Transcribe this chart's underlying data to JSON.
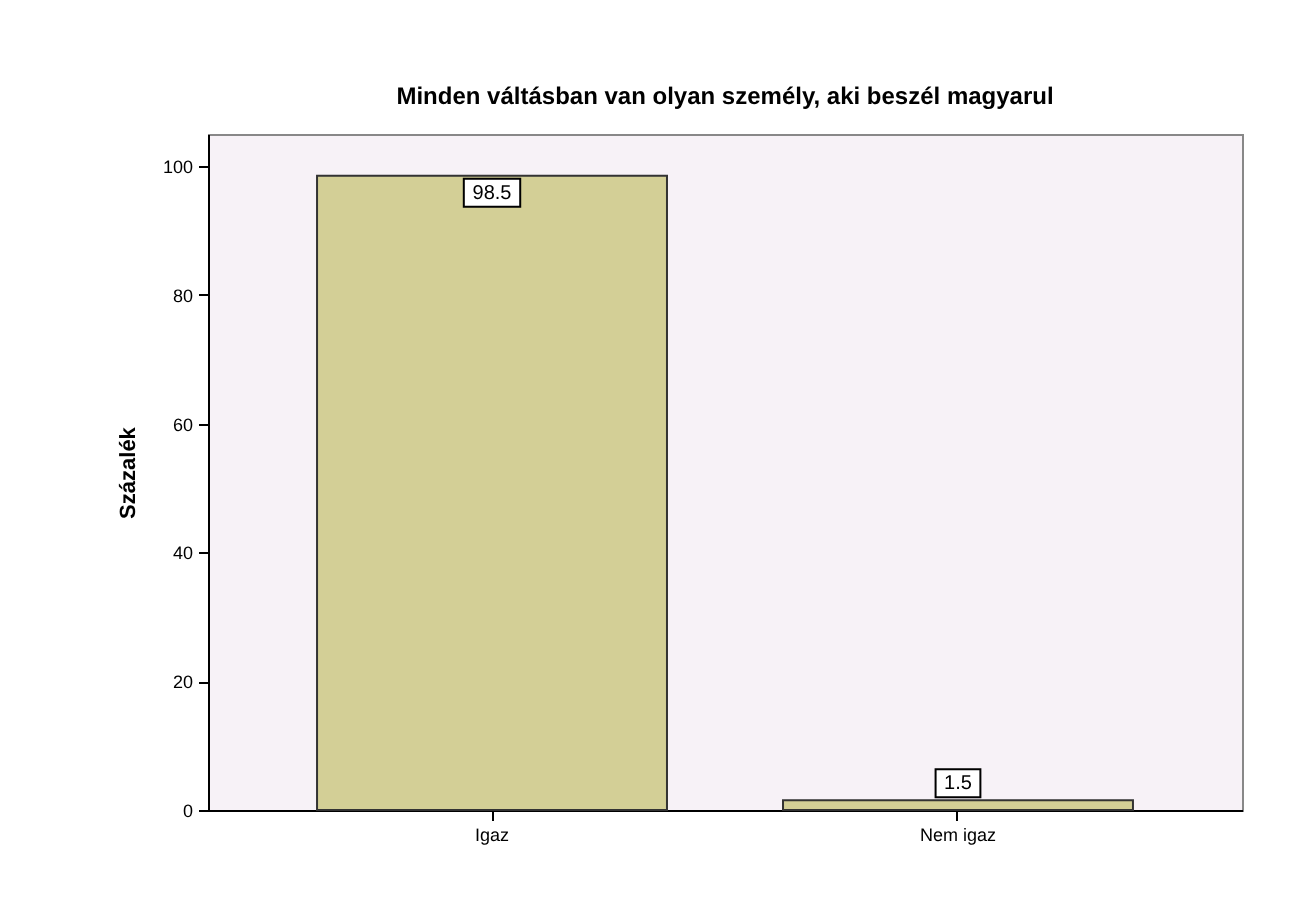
{
  "chart_data": {
    "type": "bar",
    "title": "Minden váltásban van olyan személy, aki beszél magyarul",
    "ylabel": "Százalék",
    "categories": [
      "Igaz",
      "Nem igaz"
    ],
    "values": [
      98.5,
      1.5
    ],
    "color": "#d3cf96",
    "ylim": [
      0,
      105
    ],
    "yticks": [
      0,
      20,
      40,
      60,
      80,
      100
    ],
    "grid": false,
    "data_labels": true
  }
}
